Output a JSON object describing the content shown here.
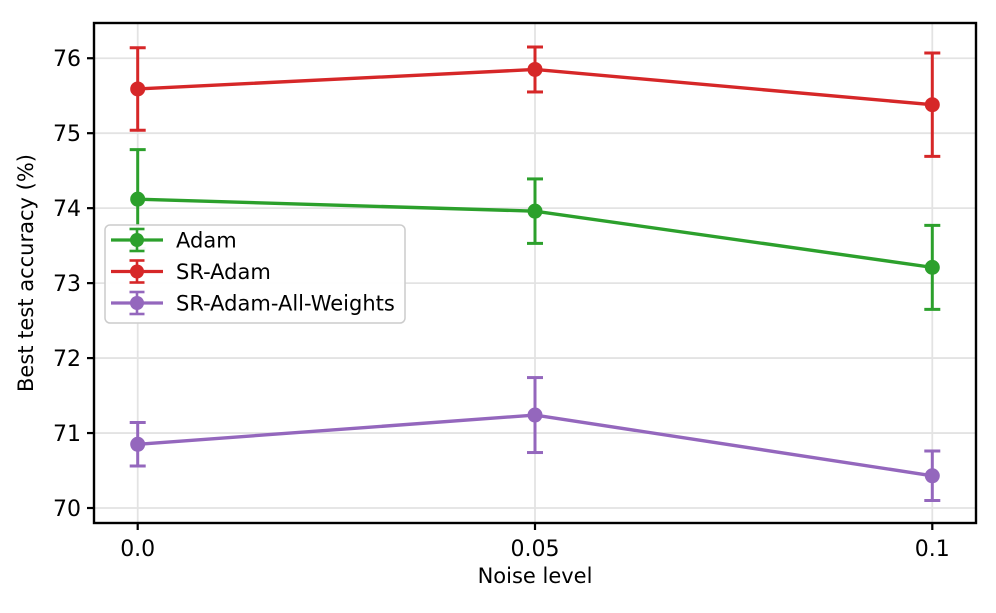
{
  "chart_data": {
    "type": "line",
    "title": "",
    "xlabel": "Noise level",
    "ylabel": "Best test accuracy (%)",
    "x": [
      0.0,
      0.05,
      0.1
    ],
    "x_tick_labels": [
      "0.0",
      "0.05",
      "0.1"
    ],
    "y_ticks": [
      70,
      71,
      72,
      73,
      74,
      75,
      76
    ],
    "xlim": [
      -0.0055,
      0.1055
    ],
    "ylim": [
      69.8,
      76.47
    ],
    "grid": true,
    "legend_position": "center left",
    "marker": "circle",
    "error_bars": true,
    "series": [
      {
        "name": "Adam",
        "color": "#2ca02c",
        "values": [
          74.12,
          73.96,
          73.21
        ],
        "yerr": [
          0.66,
          0.43,
          0.56
        ]
      },
      {
        "name": "SR-Adam",
        "color": "#d62728",
        "values": [
          75.59,
          75.85,
          75.38
        ],
        "yerr": [
          0.55,
          0.3,
          0.69
        ]
      },
      {
        "name": "SR-Adam-All-Weights",
        "color": "#9467bd",
        "values": [
          70.85,
          71.24,
          70.43
        ],
        "yerr": [
          0.29,
          0.5,
          0.33
        ]
      }
    ]
  },
  "colors": {
    "background": "#ffffff",
    "grid": "#e3e3e3",
    "spine": "#000000",
    "text": "#000000",
    "legend_border": "#cccccc",
    "legend_fill": "#ffffff"
  }
}
